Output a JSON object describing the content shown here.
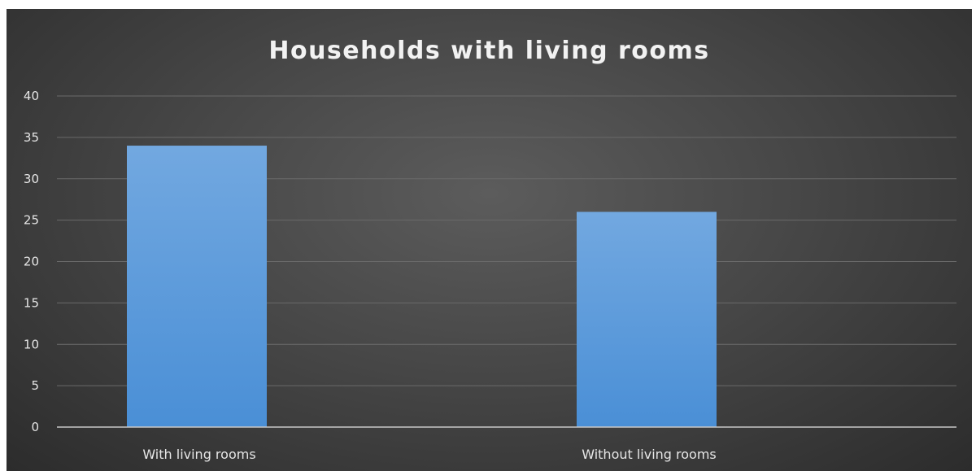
{
  "chart_data": {
    "type": "bar",
    "title": "Households with living rooms",
    "xlabel": "",
    "ylabel": "",
    "categories": [
      "With living rooms",
      "Without living rooms"
    ],
    "values": [
      34,
      26
    ],
    "ylim": [
      0,
      40
    ],
    "yticks": [
      0,
      5,
      10,
      15,
      20,
      25,
      30,
      35,
      40
    ],
    "grid": true,
    "legend": "none",
    "colors": {
      "bar_top": "#72a8e0",
      "bar_bottom": "#4a8fd6",
      "gridline": "#6a6a6a",
      "axis": "#c8c8c8"
    }
  }
}
